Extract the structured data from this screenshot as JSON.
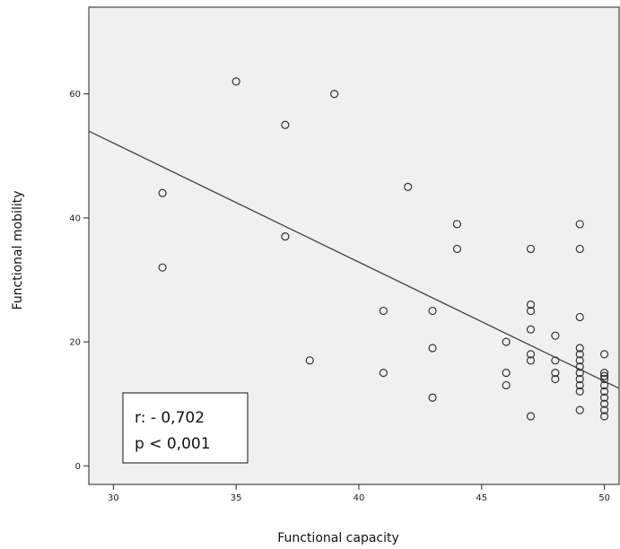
{
  "chart_data": {
    "type": "scatter",
    "title": "",
    "xlabel": "Functional capacity",
    "ylabel": "Functional mobility",
    "xlim": [
      29,
      50.6
    ],
    "ylim": [
      -3,
      74
    ],
    "x_ticks": [
      30,
      35,
      40,
      45,
      50
    ],
    "y_ticks": [
      0,
      20,
      40,
      60
    ],
    "grid": false,
    "plot_background": "#f0f0f0",
    "marker_color": "#333333",
    "line_color": "#444444",
    "points": [
      {
        "x": 32,
        "y": 44
      },
      {
        "x": 32,
        "y": 32
      },
      {
        "x": 35,
        "y": 62
      },
      {
        "x": 37,
        "y": 55
      },
      {
        "x": 37,
        "y": 37
      },
      {
        "x": 38,
        "y": 17
      },
      {
        "x": 39,
        "y": 60
      },
      {
        "x": 41,
        "y": 25
      },
      {
        "x": 41,
        "y": 15
      },
      {
        "x": 42,
        "y": 45
      },
      {
        "x": 43,
        "y": 25
      },
      {
        "x": 43,
        "y": 19
      },
      {
        "x": 43,
        "y": 11
      },
      {
        "x": 44,
        "y": 39
      },
      {
        "x": 44,
        "y": 35
      },
      {
        "x": 46,
        "y": 20
      },
      {
        "x": 46,
        "y": 15
      },
      {
        "x": 46,
        "y": 13
      },
      {
        "x": 47,
        "y": 35
      },
      {
        "x": 47,
        "y": 26
      },
      {
        "x": 47,
        "y": 25
      },
      {
        "x": 47,
        "y": 22
      },
      {
        "x": 47,
        "y": 18
      },
      {
        "x": 47,
        "y": 17
      },
      {
        "x": 47,
        "y": 8
      },
      {
        "x": 48,
        "y": 21
      },
      {
        "x": 48,
        "y": 17
      },
      {
        "x": 48,
        "y": 15
      },
      {
        "x": 48,
        "y": 14
      },
      {
        "x": 49,
        "y": 39
      },
      {
        "x": 49,
        "y": 35
      },
      {
        "x": 49,
        "y": 24
      },
      {
        "x": 49,
        "y": 19
      },
      {
        "x": 49,
        "y": 18
      },
      {
        "x": 49,
        "y": 17
      },
      {
        "x": 49,
        "y": 16
      },
      {
        "x": 49,
        "y": 15
      },
      {
        "x": 49,
        "y": 14
      },
      {
        "x": 49,
        "y": 13
      },
      {
        "x": 49,
        "y": 12
      },
      {
        "x": 49,
        "y": 9
      },
      {
        "x": 50,
        "y": 18
      },
      {
        "x": 50,
        "y": 15
      },
      {
        "x": 50,
        "y": 14.5
      },
      {
        "x": 50,
        "y": 14
      },
      {
        "x": 50,
        "y": 13
      },
      {
        "x": 50,
        "y": 12
      },
      {
        "x": 50,
        "y": 11
      },
      {
        "x": 50,
        "y": 10
      },
      {
        "x": 50,
        "y": 9
      },
      {
        "x": 50,
        "y": 8
      }
    ],
    "regression_line": {
      "x": [
        29,
        50.6
      ],
      "y": [
        54,
        12.5
      ]
    },
    "annotation": {
      "line1": "r: - 0,702",
      "line2": "p < 0,001",
      "placement": "bottom-left"
    }
  }
}
